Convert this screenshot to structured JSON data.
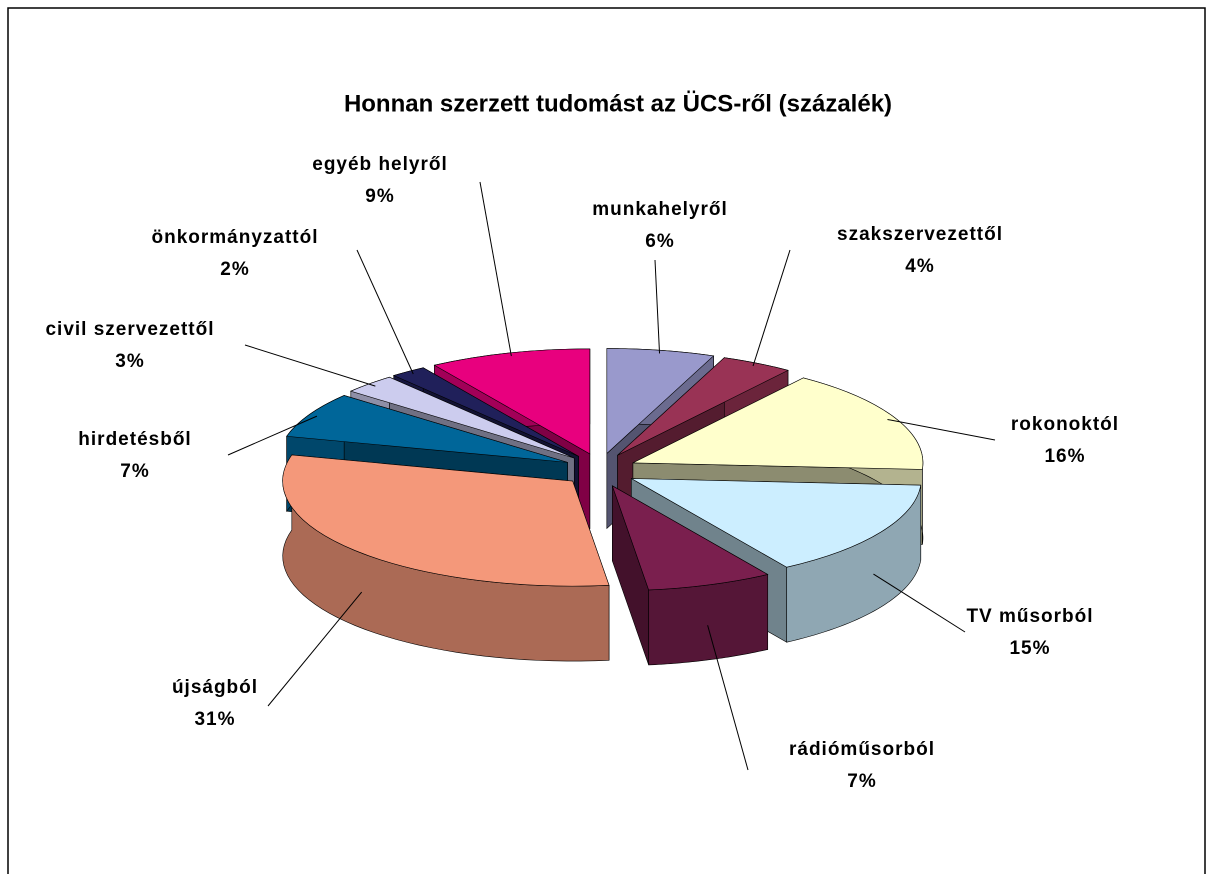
{
  "chart_data": {
    "type": "pie3d",
    "title": "Honnan szerzett tudomást az ÜCS-ről (százalék)",
    "categories": [
      "munkahelyről",
      "szakszervezettől",
      "rokonoktól",
      "TV műsorból",
      "rádióműsorból",
      "újságból",
      "hirdetésből",
      "civil szervezettől",
      "önkormányzattól",
      "egyéb helyről"
    ],
    "values": [
      6,
      4,
      16,
      15,
      7,
      31,
      7,
      3,
      2,
      9
    ],
    "value_labels": [
      "6%",
      "4%",
      "16%",
      "15%",
      "7%",
      "31%",
      "7%",
      "3%",
      "2%",
      "9%"
    ],
    "colors": [
      "#9999cc",
      "#993355",
      "#ffffcc",
      "#cceeff",
      "#7a1f4e",
      "#f4987a",
      "#006699",
      "#ccccee",
      "#20205a",
      "#e8007e"
    ]
  }
}
